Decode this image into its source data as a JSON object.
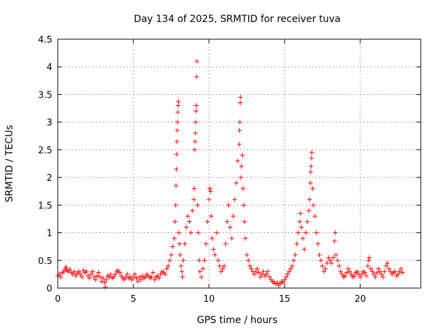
{
  "chart_data": {
    "type": "scatter",
    "title": "Day 134 of 2025, SRMTID for receiver tuva",
    "xlabel": "GPS time / hours",
    "ylabel": "SRMTID / TECUs",
    "xlim": [
      0,
      24
    ],
    "ylim": [
      0,
      4.5
    ],
    "xticks": [
      0,
      5,
      10,
      15,
      20
    ],
    "xtick_labels": [
      "0",
      "5",
      "10",
      "15",
      "20"
    ],
    "yticks": [
      0,
      0.5,
      1,
      1.5,
      2,
      2.5,
      3,
      3.5,
      4,
      4.5
    ],
    "ytick_labels": [
      "0",
      "0.5",
      "1",
      "1.5",
      "2",
      "2.5",
      "3",
      "3.5",
      "4",
      "4.5"
    ],
    "grid": true,
    "marker": "+",
    "color": "#ff0000",
    "series": [
      {
        "name": "SRMTID",
        "points": [
          [
            0.0,
            0.22
          ],
          [
            0.1,
            0.25
          ],
          [
            0.2,
            0.2
          ],
          [
            0.3,
            0.28
          ],
          [
            0.4,
            0.3
          ],
          [
            0.5,
            0.35
          ],
          [
            0.55,
            0.38
          ],
          [
            0.6,
            0.32
          ],
          [
            0.7,
            0.3
          ],
          [
            0.8,
            0.34
          ],
          [
            0.9,
            0.28
          ],
          [
            1.0,
            0.25
          ],
          [
            1.1,
            0.3
          ],
          [
            1.2,
            0.22
          ],
          [
            1.3,
            0.27
          ],
          [
            1.4,
            0.3
          ],
          [
            1.5,
            0.25
          ],
          [
            1.6,
            0.2
          ],
          [
            1.7,
            0.32
          ],
          [
            1.8,
            0.28
          ],
          [
            1.9,
            0.3
          ],
          [
            2.0,
            0.22
          ],
          [
            2.1,
            0.18
          ],
          [
            2.2,
            0.25
          ],
          [
            2.3,
            0.3
          ],
          [
            2.4,
            0.2
          ],
          [
            2.5,
            0.15
          ],
          [
            2.6,
            0.22
          ],
          [
            2.7,
            0.28
          ],
          [
            2.8,
            0.2
          ],
          [
            2.9,
            0.12
          ],
          [
            3.0,
            0.18
          ],
          [
            3.1,
            0.1
          ],
          [
            3.15,
            0.02
          ],
          [
            3.2,
            0.15
          ],
          [
            3.3,
            0.22
          ],
          [
            3.4,
            0.2
          ],
          [
            3.5,
            0.25
          ],
          [
            3.6,
            0.18
          ],
          [
            3.7,
            0.2
          ],
          [
            3.8,
            0.25
          ],
          [
            3.9,
            0.3
          ],
          [
            4.0,
            0.32
          ],
          [
            4.1,
            0.28
          ],
          [
            4.2,
            0.22
          ],
          [
            4.3,
            0.18
          ],
          [
            4.4,
            0.15
          ],
          [
            4.5,
            0.2
          ],
          [
            4.6,
            0.25
          ],
          [
            4.7,
            0.18
          ],
          [
            4.8,
            0.2
          ],
          [
            4.9,
            0.15
          ],
          [
            5.0,
            0.2
          ],
          [
            5.1,
            0.25
          ],
          [
            5.2,
            0.18
          ],
          [
            5.3,
            0.12
          ],
          [
            5.4,
            0.2
          ],
          [
            5.5,
            0.15
          ],
          [
            5.6,
            0.22
          ],
          [
            5.7,
            0.18
          ],
          [
            5.8,
            0.2
          ],
          [
            5.9,
            0.25
          ],
          [
            6.0,
            0.22
          ],
          [
            6.1,
            0.18
          ],
          [
            6.2,
            0.2
          ],
          [
            6.3,
            0.28
          ],
          [
            6.4,
            0.15
          ],
          [
            6.5,
            0.2
          ],
          [
            6.6,
            0.22
          ],
          [
            6.7,
            0.18
          ],
          [
            6.8,
            0.25
          ],
          [
            6.9,
            0.3
          ],
          [
            7.0,
            0.28
          ],
          [
            7.1,
            0.25
          ],
          [
            7.2,
            0.35
          ],
          [
            7.3,
            0.4
          ],
          [
            7.4,
            0.5
          ],
          [
            7.5,
            0.6
          ],
          [
            7.6,
            0.75
          ],
          [
            7.7,
            0.9
          ],
          [
            7.75,
            1.2
          ],
          [
            7.8,
            1.5
          ],
          [
            7.82,
            1.85
          ],
          [
            7.84,
            2.15
          ],
          [
            7.86,
            2.42
          ],
          [
            7.88,
            2.65
          ],
          [
            7.9,
            2.85
          ],
          [
            7.92,
            3.0
          ],
          [
            7.94,
            3.18
          ],
          [
            7.96,
            3.3
          ],
          [
            7.98,
            3.37
          ],
          [
            8.0,
            1.0
          ],
          [
            8.05,
            0.8
          ],
          [
            8.1,
            0.6
          ],
          [
            8.15,
            0.4
          ],
          [
            8.2,
            0.3
          ],
          [
            8.25,
            0.2
          ],
          [
            8.3,
            0.5
          ],
          [
            8.4,
            0.8
          ],
          [
            8.5,
            1.1
          ],
          [
            8.6,
            1.3
          ],
          [
            8.7,
            1.2
          ],
          [
            8.8,
            1.0
          ],
          [
            8.9,
            1.4
          ],
          [
            9.0,
            1.6
          ],
          [
            9.02,
            1.8
          ],
          [
            9.05,
            2.5
          ],
          [
            9.08,
            2.65
          ],
          [
            9.1,
            2.8
          ],
          [
            9.12,
            3.0
          ],
          [
            9.14,
            3.2
          ],
          [
            9.16,
            3.3
          ],
          [
            9.18,
            3.82
          ],
          [
            9.2,
            4.1
          ],
          [
            9.25,
            1.5
          ],
          [
            9.3,
            1.0
          ],
          [
            9.35,
            0.5
          ],
          [
            9.4,
            0.3
          ],
          [
            9.5,
            0.2
          ],
          [
            9.6,
            0.35
          ],
          [
            9.7,
            0.5
          ],
          [
            9.8,
            0.8
          ],
          [
            9.9,
            1.2
          ],
          [
            10.0,
            1.6
          ],
          [
            10.05,
            1.8
          ],
          [
            10.1,
            1.75
          ],
          [
            10.15,
            1.3
          ],
          [
            10.2,
            0.9
          ],
          [
            10.3,
            0.7
          ],
          [
            10.4,
            0.6
          ],
          [
            10.5,
            1.0
          ],
          [
            10.6,
            0.5
          ],
          [
            10.7,
            0.4
          ],
          [
            10.8,
            0.3
          ],
          [
            10.9,
            0.35
          ],
          [
            11.0,
            0.4
          ],
          [
            11.1,
            0.8
          ],
          [
            11.2,
            1.2
          ],
          [
            11.3,
            1.5
          ],
          [
            11.4,
            1.1
          ],
          [
            11.5,
            0.9
          ],
          [
            11.6,
            1.3
          ],
          [
            11.7,
            1.6
          ],
          [
            11.8,
            1.9
          ],
          [
            11.9,
            2.3
          ],
          [
            12.0,
            2.6
          ],
          [
            12.02,
            2.85
          ],
          [
            12.04,
            3.0
          ],
          [
            12.06,
            3.35
          ],
          [
            12.08,
            3.45
          ],
          [
            12.1,
            2.0
          ],
          [
            12.15,
            2.2
          ],
          [
            12.2,
            2.4
          ],
          [
            12.25,
            1.8
          ],
          [
            12.3,
            1.5
          ],
          [
            12.35,
            1.2
          ],
          [
            12.4,
            0.9
          ],
          [
            12.5,
            0.6
          ],
          [
            12.6,
            0.5
          ],
          [
            12.7,
            0.4
          ],
          [
            12.8,
            0.35
          ],
          [
            12.9,
            0.3
          ],
          [
            13.0,
            0.25
          ],
          [
            13.1,
            0.3
          ],
          [
            13.2,
            0.35
          ],
          [
            13.3,
            0.28
          ],
          [
            13.4,
            0.2
          ],
          [
            13.5,
            0.25
          ],
          [
            13.6,
            0.3
          ],
          [
            13.7,
            0.22
          ],
          [
            13.8,
            0.25
          ],
          [
            13.9,
            0.3
          ],
          [
            14.0,
            0.2
          ],
          [
            14.1,
            0.15
          ],
          [
            14.2,
            0.12
          ],
          [
            14.3,
            0.1
          ],
          [
            14.4,
            0.08
          ],
          [
            14.5,
            0.1
          ],
          [
            14.6,
            0.05
          ],
          [
            14.7,
            0.08
          ],
          [
            14.8,
            0.12
          ],
          [
            14.9,
            0.1
          ],
          [
            15.0,
            0.15
          ],
          [
            15.1,
            0.2
          ],
          [
            15.2,
            0.25
          ],
          [
            15.3,
            0.3
          ],
          [
            15.4,
            0.35
          ],
          [
            15.5,
            0.4
          ],
          [
            15.6,
            0.5
          ],
          [
            15.7,
            0.6
          ],
          [
            15.8,
            0.8
          ],
          [
            15.9,
            1.0
          ],
          [
            16.0,
            1.2
          ],
          [
            16.05,
            1.35
          ],
          [
            16.1,
            1.1
          ],
          [
            16.2,
            0.9
          ],
          [
            16.3,
            0.7
          ],
          [
            16.4,
            1.0
          ],
          [
            16.5,
            1.2
          ],
          [
            16.6,
            1.4
          ],
          [
            16.65,
            1.6
          ],
          [
            16.7,
            1.9
          ],
          [
            16.72,
            2.1
          ],
          [
            16.75,
            2.2
          ],
          [
            16.78,
            2.35
          ],
          [
            16.8,
            2.45
          ],
          [
            16.85,
            1.8
          ],
          [
            16.9,
            1.5
          ],
          [
            17.0,
            1.3
          ],
          [
            17.1,
            1.0
          ],
          [
            17.2,
            0.8
          ],
          [
            17.3,
            0.6
          ],
          [
            17.4,
            0.5
          ],
          [
            17.5,
            0.4
          ],
          [
            17.6,
            0.3
          ],
          [
            17.7,
            0.35
          ],
          [
            17.8,
            0.45
          ],
          [
            17.9,
            0.55
          ],
          [
            18.0,
            0.5
          ],
          [
            18.1,
            0.45
          ],
          [
            18.2,
            0.55
          ],
          [
            18.3,
            0.85
          ],
          [
            18.35,
            1.0
          ],
          [
            18.4,
            0.6
          ],
          [
            18.5,
            0.5
          ],
          [
            18.6,
            0.4
          ],
          [
            18.7,
            0.3
          ],
          [
            18.8,
            0.25
          ],
          [
            18.9,
            0.2
          ],
          [
            19.0,
            0.22
          ],
          [
            19.1,
            0.28
          ],
          [
            19.2,
            0.35
          ],
          [
            19.3,
            0.3
          ],
          [
            19.4,
            0.25
          ],
          [
            19.5,
            0.2
          ],
          [
            19.6,
            0.22
          ],
          [
            19.7,
            0.28
          ],
          [
            19.8,
            0.3
          ],
          [
            19.9,
            0.25
          ],
          [
            20.0,
            0.2
          ],
          [
            20.1,
            0.25
          ],
          [
            20.2,
            0.3
          ],
          [
            20.3,
            0.28
          ],
          [
            20.4,
            0.22
          ],
          [
            20.5,
            0.4
          ],
          [
            20.55,
            0.5
          ],
          [
            20.6,
            0.55
          ],
          [
            20.7,
            0.35
          ],
          [
            20.8,
            0.3
          ],
          [
            20.9,
            0.25
          ],
          [
            21.0,
            0.2
          ],
          [
            21.1,
            0.28
          ],
          [
            21.2,
            0.35
          ],
          [
            21.3,
            0.3
          ],
          [
            21.4,
            0.25
          ],
          [
            21.5,
            0.2
          ],
          [
            21.6,
            0.3
          ],
          [
            21.7,
            0.4
          ],
          [
            21.8,
            0.45
          ],
          [
            21.9,
            0.35
          ],
          [
            22.0,
            0.3
          ],
          [
            22.1,
            0.25
          ],
          [
            22.2,
            0.28
          ],
          [
            22.3,
            0.3
          ],
          [
            22.4,
            0.22
          ],
          [
            22.5,
            0.25
          ],
          [
            22.6,
            0.3
          ],
          [
            22.7,
            0.35
          ],
          [
            22.8,
            0.28
          ]
        ]
      }
    ]
  }
}
